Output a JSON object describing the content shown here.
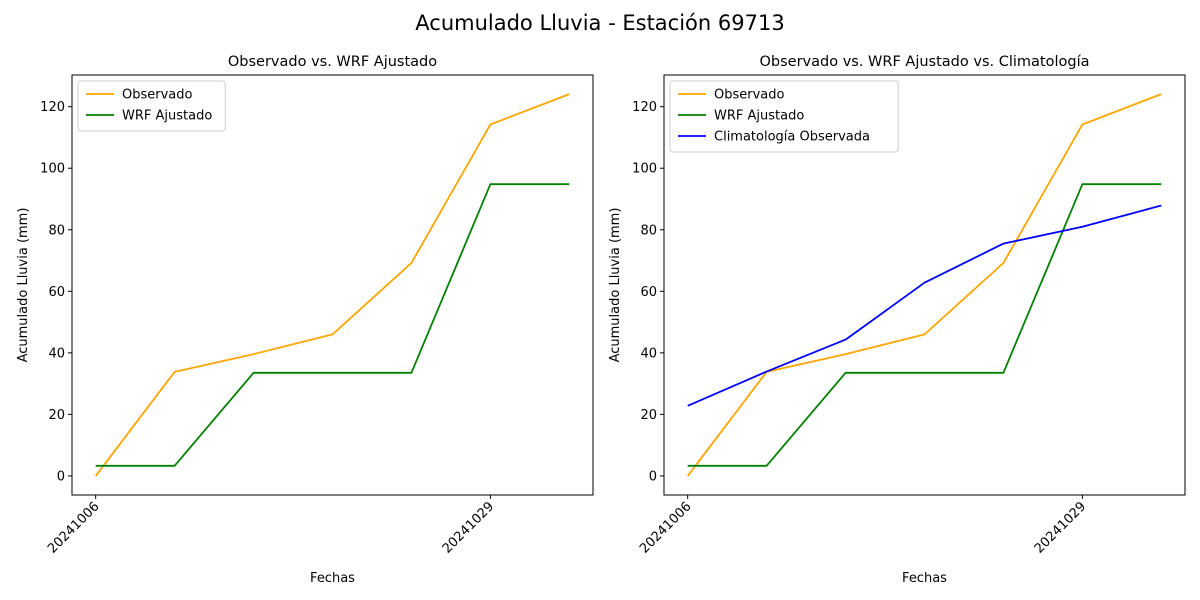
{
  "figure": {
    "suptitle": "Acumulado Lluvia - Estación 69713"
  },
  "chart_data": [
    {
      "type": "line",
      "title": "Observado vs. WRF Ajustado",
      "xlabel": "Fechas",
      "ylabel": "Acumulado Lluvia (mm)",
      "x": [
        0,
        1,
        2,
        3,
        4,
        5,
        6
      ],
      "xticks": [
        0,
        5
      ],
      "xticklabels": [
        "20241006",
        "20241029"
      ],
      "xlim": [
        -0.3,
        6.3
      ],
      "ylim": [
        -6.2,
        130.3
      ],
      "yticks": [
        0,
        20,
        40,
        60,
        80,
        100,
        120
      ],
      "legend_position": "top-left",
      "series": [
        {
          "name": "Observado",
          "color": "#FFA500",
          "values": [
            0,
            33.8,
            39.6,
            46.0,
            69.2,
            114.2,
            124.1
          ]
        },
        {
          "name": "WRF Ajustado",
          "color": "#008000",
          "values": [
            3.3,
            3.3,
            33.5,
            33.5,
            33.5,
            94.8,
            94.8
          ]
        }
      ]
    },
    {
      "type": "line",
      "title": "Observado vs. WRF Ajustado vs. Climatología",
      "xlabel": "Fechas",
      "ylabel": "Acumulado Lluvia (mm)",
      "x": [
        0,
        1,
        2,
        3,
        4,
        5,
        6
      ],
      "xticks": [
        0,
        5
      ],
      "xticklabels": [
        "20241006",
        "20241029"
      ],
      "xlim": [
        -0.3,
        6.3
      ],
      "ylim": [
        -6.2,
        130.3
      ],
      "yticks": [
        0,
        20,
        40,
        60,
        80,
        100,
        120
      ],
      "legend_position": "top-left",
      "series": [
        {
          "name": "Observado",
          "color": "#FFA500",
          "values": [
            0,
            33.8,
            39.6,
            46.0,
            69.2,
            114.2,
            124.1
          ]
        },
        {
          "name": "WRF Ajustado",
          "color": "#008000",
          "values": [
            3.3,
            3.3,
            33.5,
            33.5,
            33.5,
            94.8,
            94.8
          ]
        },
        {
          "name": "Climatología Observada",
          "color": "#0000FF",
          "values": [
            22.8,
            33.9,
            44.3,
            62.8,
            75.5,
            81.0,
            87.9
          ]
        }
      ]
    }
  ]
}
